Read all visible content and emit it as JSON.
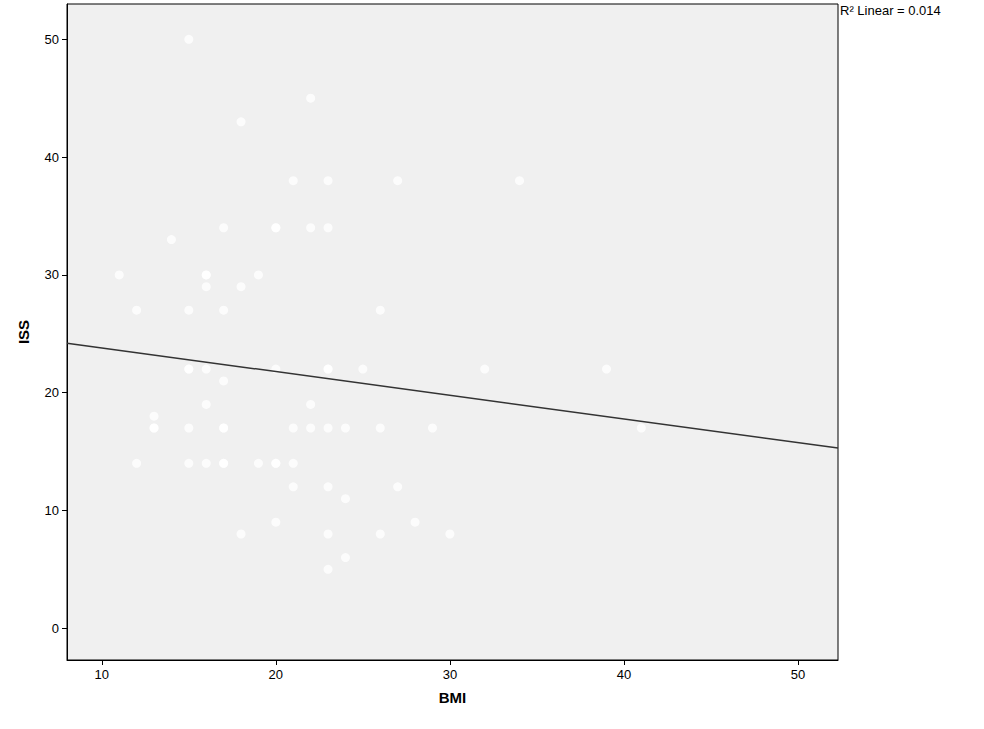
{
  "chart_data": {
    "type": "scatter",
    "x_label": "BMI",
    "y_label": "ISS",
    "annotations": [
      "R² Linear = 0.014"
    ],
    "xlim": [
      8,
      52.3
    ],
    "xticks": [
      10,
      20,
      30,
      40,
      50
    ],
    "ylim": [
      -2.7,
      53
    ],
    "yticks": [
      0,
      10,
      20,
      30,
      40,
      50
    ],
    "grid": false,
    "series": [
      {
        "type": "scatter",
        "marker": "circle",
        "color": "#333333",
        "x": [
          15,
          22,
          18,
          21,
          23,
          27,
          34,
          14,
          17,
          20,
          20,
          22,
          23,
          11,
          16,
          16,
          19,
          16,
          18,
          12,
          15,
          17,
          26,
          15,
          15,
          16,
          20,
          23,
          23,
          25,
          32,
          39,
          17,
          16,
          22,
          13,
          13,
          13,
          15,
          17,
          17,
          21,
          22,
          23,
          24,
          26,
          29,
          41,
          12,
          15,
          16,
          17,
          17,
          19,
          20,
          20,
          21,
          21,
          23,
          27,
          24,
          20,
          28,
          18,
          23,
          26,
          30,
          24,
          23
        ],
        "values": [
          50,
          45,
          43,
          38,
          38,
          38,
          38,
          33,
          34,
          34,
          34,
          34,
          34,
          30,
          30,
          30,
          30,
          29,
          29,
          27,
          27,
          27,
          27,
          22,
          22,
          22,
          22,
          22,
          22,
          22,
          22,
          22,
          21,
          19,
          19,
          18,
          17,
          17,
          17,
          17,
          17,
          17,
          17,
          17,
          17,
          17,
          17,
          17,
          14,
          14,
          14,
          14,
          14,
          14,
          14,
          14,
          14,
          12,
          12,
          12,
          11,
          9,
          9,
          8,
          8,
          8,
          8,
          6,
          5
        ]
      },
      {
        "type": "line",
        "line_style": "solid",
        "color": "#333333",
        "x": [
          8,
          52.3
        ],
        "values": [
          24.2,
          15.3
        ]
      }
    ]
  }
}
